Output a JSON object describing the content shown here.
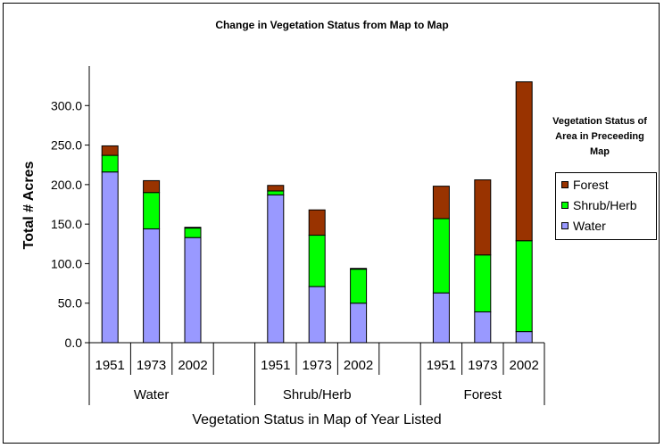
{
  "chart_data": {
    "type": "bar",
    "stacked": true,
    "title": "Change in Vegetation Status from Map to Map",
    "xlabel": "Vegetation Status in Map of Year Listed",
    "ylabel": "Total # Acres",
    "ylim": [
      0,
      350
    ],
    "yticks": [
      "0.0",
      "50.0",
      "100.0",
      "150.0",
      "200.0",
      "250.0",
      "300.0"
    ],
    "groups": [
      "Water",
      "Shrub/Herb",
      "Forest"
    ],
    "categories": [
      "1951",
      "1973",
      "2002",
      "1951",
      "1973",
      "2002",
      "1951",
      "1973",
      "2002"
    ],
    "series": [
      {
        "name": "Water",
        "color": "#9999ff",
        "values": [
          216,
          144,
          133,
          187,
          71,
          50,
          63,
          39,
          14
        ]
      },
      {
        "name": "Shrub/Herb",
        "color": "#00ff00",
        "values": [
          21,
          46,
          12,
          5,
          65,
          43,
          94,
          72,
          115
        ]
      },
      {
        "name": "Forest",
        "color": "#993300",
        "values": [
          12,
          15,
          1,
          7,
          32,
          1,
          41,
          95,
          201
        ]
      }
    ],
    "legend": {
      "title": "Vegetation Status of Area in Preceeding Map",
      "position": "right",
      "entries": [
        "Forest",
        "Shrub/Herb",
        "Water"
      ]
    },
    "grid": false
  }
}
